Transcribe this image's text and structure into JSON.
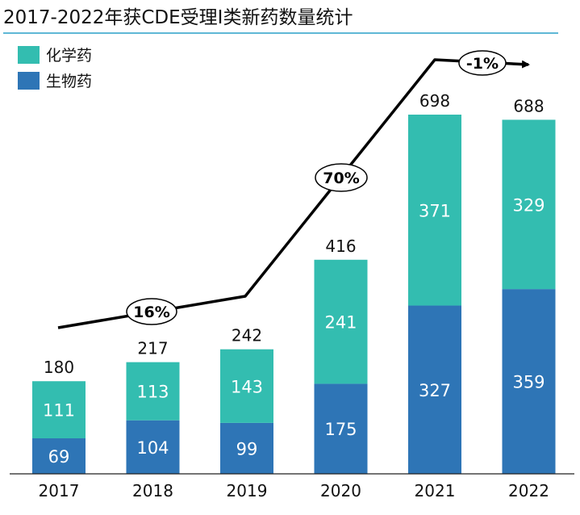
{
  "chart_data": {
    "type": "stacked-bar",
    "title": "2017-2022年获CDE受理I类新药数量统计",
    "categories": [
      "2017",
      "2018",
      "2019",
      "2020",
      "2021",
      "2022"
    ],
    "series": [
      {
        "name": "生物药",
        "color": "#2e75b6",
        "values": [
          69,
          104,
          99,
          175,
          327,
          359
        ]
      },
      {
        "name": "化学药",
        "color": "#33bdb0",
        "values": [
          111,
          113,
          143,
          241,
          371,
          329
        ]
      }
    ],
    "totals": [
      180,
      217,
      242,
      416,
      698,
      688
    ],
    "legend": [
      "化学药",
      "生物药"
    ],
    "legend_position": "top-left",
    "growth_annotations": [
      {
        "label": "16%",
        "from": "2017",
        "to": "2019"
      },
      {
        "label": "70%",
        "from": "2019",
        "to": "2021"
      },
      {
        "label": "-1%",
        "from": "2021",
        "to": "2022"
      }
    ],
    "ylim": [
      0,
      700
    ],
    "xlabel": "",
    "ylabel": ""
  }
}
